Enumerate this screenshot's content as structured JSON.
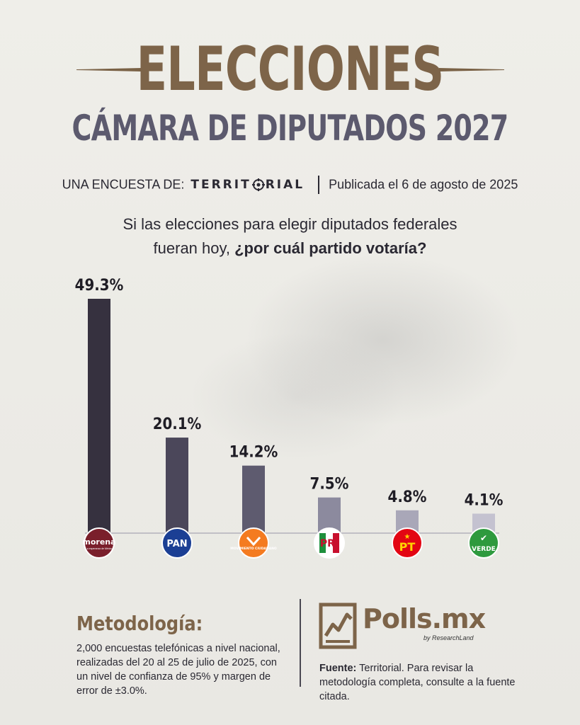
{
  "header": {
    "title": "ELECCIONES",
    "subtitle": "CÁMARA DE DIPUTADOS 2027",
    "byline_prefix": "UNA ENCUESTA DE:",
    "byline_brand": "TERRITORIAL",
    "byline_date": "Publicada el 6 de agosto de 2025"
  },
  "question": {
    "line1": "Si las elecciones para elegir diputados federales",
    "line2_plain": "fueran hoy, ",
    "line2_bold": "¿por cuál partido votaría?"
  },
  "chart_data": {
    "type": "bar",
    "categories": [
      "morena",
      "PAN",
      "Movimiento Ciudadano",
      "PRI",
      "PT",
      "VERDE"
    ],
    "values": [
      49.3,
      20.1,
      14.2,
      7.5,
      4.8,
      4.1
    ],
    "value_labels": [
      "49.3%",
      "20.1%",
      "14.2%",
      "7.5%",
      "4.8%",
      "4.1%"
    ],
    "bar_colors": [
      "#36313f",
      "#4b475a",
      "#5e5b6f",
      "#8c8a9e",
      "#a9a7b8",
      "#c4c2d0"
    ],
    "ylim": [
      0,
      49.3
    ],
    "grid": false,
    "party_logos": [
      {
        "name": "morena",
        "text": "morena",
        "subtext": "La esperanza de México",
        "color": "#7a1f2b",
        "text_color": "#ffffff"
      },
      {
        "name": "PAN",
        "text": "PAN",
        "color": "#1b3f94",
        "text_color": "#ffffff"
      },
      {
        "name": "movimiento-ciudadano",
        "text": "MOVIMIENTO CIUDADANO",
        "color": "#f47b20",
        "text_color": "#ffffff"
      },
      {
        "name": "PRI",
        "text": "PRI",
        "color": "#ffffff",
        "text_color": "#c8102e"
      },
      {
        "name": "PT",
        "text": "PT",
        "color": "#e30613",
        "text_color": "#ffd400"
      },
      {
        "name": "VERDE",
        "text": "VERDE",
        "color": "#2e9a3e",
        "text_color": "#ffffff"
      }
    ]
  },
  "methodology": {
    "title": "Metodología:",
    "text": "2,000 encuestas telefónicas a nivel nacional, realizadas del 20 al 25 de julio de 2025, con un nivel de confianza de 95% y margen de error de ±3.0%."
  },
  "footer": {
    "logo_text": "Polls.mx",
    "logo_sub": "by ResearchLand",
    "source_label": "Fuente:",
    "source_text": " Territorial. Para revisar la metodología completa, consulte a la fuente citada."
  },
  "colors": {
    "accent_brown": "#7d6449",
    "subtitle_gray": "#5c5a6e",
    "background": "#ecebe6"
  }
}
